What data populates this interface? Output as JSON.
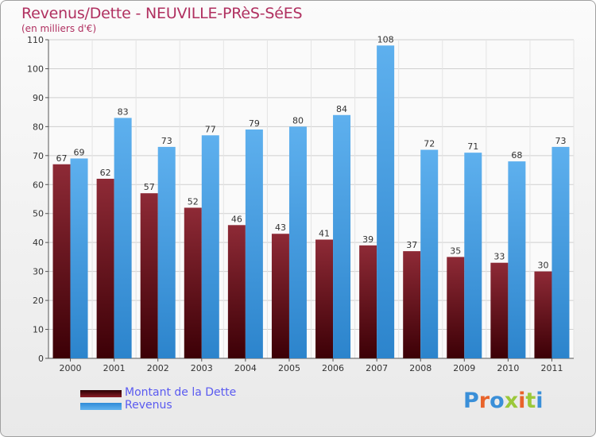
{
  "title": "Revenus/Dette - NEUVILLE-PRèS-SéES",
  "subtitle": "(en milliers d'€)",
  "brand": "Proxiti",
  "colors": {
    "dette": "#7a1520",
    "revenus": "#3d95dc",
    "title": "#b03060",
    "legend_text": "#5a5af0"
  },
  "chart_data": {
    "type": "bar",
    "title": "Revenus/Dette - NEUVILLE-PRèS-SéES",
    "subtitle": "(en milliers d'€)",
    "categories": [
      "2000",
      "2001",
      "2002",
      "2003",
      "2004",
      "2005",
      "2006",
      "2007",
      "2008",
      "2009",
      "2010",
      "2011"
    ],
    "series": [
      {
        "name": "Montant de la Dette",
        "values": [
          67,
          62,
          57,
          52,
          46,
          43,
          41,
          39,
          37,
          35,
          33,
          30
        ]
      },
      {
        "name": "Revenus",
        "values": [
          69,
          83,
          73,
          77,
          79,
          80,
          84,
          108,
          72,
          71,
          68,
          73
        ]
      }
    ],
    "yticks": [
      0,
      10,
      20,
      30,
      40,
      50,
      60,
      70,
      80,
      90,
      100,
      110
    ],
    "ylim": [
      0,
      110
    ],
    "grid": true,
    "legend": "bottom-left"
  }
}
